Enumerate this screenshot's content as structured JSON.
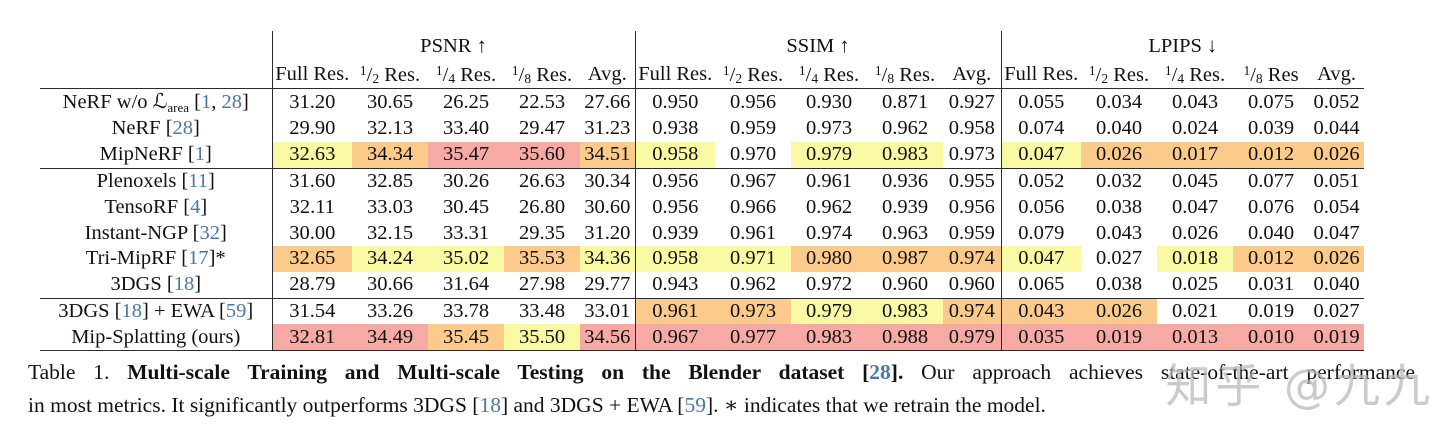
{
  "colors": {
    "highlight_best": "#f7aaa4",
    "highlight_second": "#fccb8c",
    "highlight_third": "#fbfaa4",
    "citation_blue": "#4878a8"
  },
  "table": {
    "sections": [
      {
        "title": "PSNR",
        "arrow": "↑",
        "cols": [
          "Full Res.",
          "1/2 Res.",
          "1/4 Res.",
          "1/8 Res.",
          "Avg."
        ]
      },
      {
        "title": "SSIM",
        "arrow": "↑",
        "cols": [
          "Full Res.",
          "1/2 Res.",
          "1/4 Res.",
          "1/8 Res.",
          "Avg."
        ]
      },
      {
        "title": "LPIPS",
        "arrow": "↓",
        "cols": [
          "Full Res.",
          "1/2 Res.",
          "1/4 Res.",
          "1/8 Res",
          "Avg."
        ]
      }
    ],
    "rows": [
      {
        "label": [
          [
            "NeRF w/o ",
            ""
          ],
          [
            "ℒ",
            "mathcal"
          ],
          [
            "area",
            "sub"
          ],
          [
            " [",
            ""
          ],
          [
            "1",
            "ref"
          ],
          [
            ", ",
            ""
          ],
          [
            "28",
            "ref"
          ],
          [
            "]",
            ""
          ]
        ],
        "psnr": [
          "31.20",
          "30.65",
          "26.25",
          "22.53",
          "27.66"
        ],
        "psnr_hl": [
          "",
          "",
          "",
          "",
          ""
        ],
        "ssim": [
          "0.950",
          "0.956",
          "0.930",
          "0.871",
          "0.927"
        ],
        "ssim_hl": [
          "",
          "",
          "",
          "",
          ""
        ],
        "lpips": [
          "0.055",
          "0.034",
          "0.043",
          "0.075",
          "0.052"
        ],
        "lpips_hl": [
          "",
          "",
          "",
          "",
          ""
        ],
        "group_end": false
      },
      {
        "label": [
          [
            "NeRF [",
            ""
          ],
          [
            "28",
            "ref"
          ],
          [
            "]",
            ""
          ]
        ],
        "psnr": [
          "29.90",
          "32.13",
          "33.40",
          "29.47",
          "31.23"
        ],
        "psnr_hl": [
          "",
          "",
          "",
          "",
          ""
        ],
        "ssim": [
          "0.938",
          "0.959",
          "0.973",
          "0.962",
          "0.958"
        ],
        "ssim_hl": [
          "",
          "",
          "",
          "",
          ""
        ],
        "lpips": [
          "0.074",
          "0.040",
          "0.024",
          "0.039",
          "0.044"
        ],
        "lpips_hl": [
          "",
          "",
          "",
          "",
          ""
        ],
        "group_end": false
      },
      {
        "label": [
          [
            "MipNeRF [",
            ""
          ],
          [
            "1",
            "ref"
          ],
          [
            "]",
            ""
          ]
        ],
        "psnr": [
          "32.63",
          "34.34",
          "35.47",
          "35.60",
          "34.51"
        ],
        "psnr_hl": [
          "y",
          "o",
          "r",
          "r",
          "o"
        ],
        "ssim": [
          "0.958",
          "0.970",
          "0.979",
          "0.983",
          "0.973"
        ],
        "ssim_hl": [
          "y",
          "",
          "y",
          "y",
          ""
        ],
        "lpips": [
          "0.047",
          "0.026",
          "0.017",
          "0.012",
          "0.026"
        ],
        "lpips_hl": [
          "y",
          "o",
          "o",
          "o",
          "o"
        ],
        "group_end": true
      },
      {
        "label": [
          [
            "Plenoxels [",
            ""
          ],
          [
            "11",
            "ref"
          ],
          [
            "]",
            ""
          ]
        ],
        "psnr": [
          "31.60",
          "32.85",
          "30.26",
          "26.63",
          "30.34"
        ],
        "psnr_hl": [
          "",
          "",
          "",
          "",
          ""
        ],
        "ssim": [
          "0.956",
          "0.967",
          "0.961",
          "0.936",
          "0.955"
        ],
        "ssim_hl": [
          "",
          "",
          "",
          "",
          ""
        ],
        "lpips": [
          "0.052",
          "0.032",
          "0.045",
          "0.077",
          "0.051"
        ],
        "lpips_hl": [
          "",
          "",
          "",
          "",
          ""
        ],
        "group_end": false
      },
      {
        "label": [
          [
            "TensoRF [",
            ""
          ],
          [
            "4",
            "ref"
          ],
          [
            "]",
            ""
          ]
        ],
        "psnr": [
          "32.11",
          "33.03",
          "30.45",
          "26.80",
          "30.60"
        ],
        "psnr_hl": [
          "",
          "",
          "",
          "",
          ""
        ],
        "ssim": [
          "0.956",
          "0.966",
          "0.962",
          "0.939",
          "0.956"
        ],
        "ssim_hl": [
          "",
          "",
          "",
          "",
          ""
        ],
        "lpips": [
          "0.056",
          "0.038",
          "0.047",
          "0.076",
          "0.054"
        ],
        "lpips_hl": [
          "",
          "",
          "",
          "",
          ""
        ],
        "group_end": false
      },
      {
        "label": [
          [
            "Instant-NGP [",
            ""
          ],
          [
            "32",
            "ref"
          ],
          [
            "]",
            ""
          ]
        ],
        "psnr": [
          "30.00",
          "32.15",
          "33.31",
          "29.35",
          "31.20"
        ],
        "psnr_hl": [
          "",
          "",
          "",
          "",
          ""
        ],
        "ssim": [
          "0.939",
          "0.961",
          "0.974",
          "0.963",
          "0.959"
        ],
        "ssim_hl": [
          "",
          "",
          "",
          "",
          ""
        ],
        "lpips": [
          "0.079",
          "0.043",
          "0.026",
          "0.040",
          "0.047"
        ],
        "lpips_hl": [
          "",
          "",
          "",
          "",
          ""
        ],
        "group_end": false
      },
      {
        "label": [
          [
            "Tri-MipRF [",
            ""
          ],
          [
            "17",
            "ref"
          ],
          [
            "]*",
            ""
          ]
        ],
        "psnr": [
          "32.65",
          "34.24",
          "35.02",
          "35.53",
          "34.36"
        ],
        "psnr_hl": [
          "o",
          "y",
          "y",
          "o",
          "y"
        ],
        "ssim": [
          "0.958",
          "0.971",
          "0.980",
          "0.987",
          "0.974"
        ],
        "ssim_hl": [
          "y",
          "y",
          "o",
          "o",
          "o"
        ],
        "lpips": [
          "0.047",
          "0.027",
          "0.018",
          "0.012",
          "0.026"
        ],
        "lpips_hl": [
          "y",
          "",
          "y",
          "o",
          "o"
        ],
        "group_end": false
      },
      {
        "label": [
          [
            "3DGS [",
            ""
          ],
          [
            "18",
            "ref"
          ],
          [
            "]",
            ""
          ]
        ],
        "psnr": [
          "28.79",
          "30.66",
          "31.64",
          "27.98",
          "29.77"
        ],
        "psnr_hl": [
          "",
          "",
          "",
          "",
          ""
        ],
        "ssim": [
          "0.943",
          "0.962",
          "0.972",
          "0.960",
          "0.960"
        ],
        "ssim_hl": [
          "",
          "",
          "",
          "",
          ""
        ],
        "lpips": [
          "0.065",
          "0.038",
          "0.025",
          "0.031",
          "0.040"
        ],
        "lpips_hl": [
          "",
          "",
          "",
          "",
          ""
        ],
        "group_end": true
      },
      {
        "label": [
          [
            "3DGS [",
            ""
          ],
          [
            "18",
            "ref"
          ],
          [
            "] + EWA [",
            ""
          ],
          [
            "59",
            "ref"
          ],
          [
            "]",
            ""
          ]
        ],
        "psnr": [
          "31.54",
          "33.26",
          "33.78",
          "33.48",
          "33.01"
        ],
        "psnr_hl": [
          "",
          "",
          "",
          "",
          ""
        ],
        "ssim": [
          "0.961",
          "0.973",
          "0.979",
          "0.983",
          "0.974"
        ],
        "ssim_hl": [
          "o",
          "o",
          "y",
          "y",
          "o"
        ],
        "lpips": [
          "0.043",
          "0.026",
          "0.021",
          "0.019",
          "0.027"
        ],
        "lpips_hl": [
          "o",
          "o",
          "",
          "",
          ""
        ],
        "group_end": false
      },
      {
        "label": [
          [
            "Mip-Splatting (ours)",
            ""
          ]
        ],
        "psnr": [
          "32.81",
          "34.49",
          "35.45",
          "35.50",
          "34.56"
        ],
        "psnr_hl": [
          "r",
          "r",
          "o",
          "y",
          "r"
        ],
        "ssim": [
          "0.967",
          "0.977",
          "0.983",
          "0.988",
          "0.979"
        ],
        "ssim_hl": [
          "r",
          "r",
          "r",
          "r",
          "r"
        ],
        "lpips": [
          "0.035",
          "0.019",
          "0.013",
          "0.010",
          "0.019"
        ],
        "lpips_hl": [
          "r",
          "r",
          "r",
          "r",
          "r"
        ],
        "group_end": false
      }
    ]
  },
  "caption": {
    "lines": [
      {
        "segments": [
          {
            "text": "Table 1. ",
            "bold": false,
            "ref": false
          },
          {
            "text": "Multi-scale Training and Multi-scale Testing on the Blender dataset [",
            "bold": true,
            "ref": false
          },
          {
            "text": "28",
            "bold": true,
            "ref": true
          },
          {
            "text": "].",
            "bold": true,
            "ref": false
          },
          {
            "text": " Our approach achieves state-of-the-art performance",
            "bold": false,
            "ref": false
          }
        ]
      },
      {
        "segments": [
          {
            "text": "in most metrics. It significantly outperforms 3DGS [",
            "bold": false,
            "ref": false
          },
          {
            "text": "18",
            "bold": false,
            "ref": true
          },
          {
            "text": "] and 3DGS + EWA [",
            "bold": false,
            "ref": false
          },
          {
            "text": "59",
            "bold": false,
            "ref": true
          },
          {
            "text": "]. ∗ indicates that we retrain the model.",
            "bold": false,
            "ref": false
          }
        ]
      }
    ]
  },
  "watermark": {
    "text": "知乎 @九九"
  }
}
